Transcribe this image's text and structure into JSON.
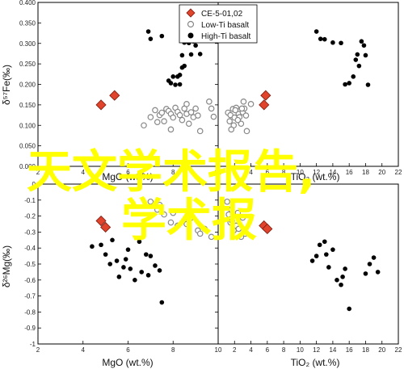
{
  "chart_data": [
    {
      "type": "scatter",
      "xlabel": "MgO (wt.%)",
      "ylabel": "δ57Fe(‰)",
      "xlim": [
        2,
        10
      ],
      "ylim": [
        0.0,
        0.4
      ],
      "xticks": [
        2,
        4,
        6,
        8,
        10
      ],
      "yticks": [
        "0.000",
        "0.050",
        "0.100",
        "0.150",
        "0.200",
        "0.250",
        "0.300",
        "0.350",
        "0.400"
      ],
      "series": [
        {
          "name": "CE-5-01,02",
          "marker": "diamond",
          "color": "#e0442c",
          "x": [
            4.8,
            5.4
          ],
          "y": [
            0.15,
            0.173
          ]
        },
        {
          "name": "Low-Ti basalt",
          "marker": "circle-open",
          "color": "#888888",
          "x": [
            6.7,
            7.0,
            7.2,
            7.4,
            7.5,
            7.6,
            7.7,
            7.8,
            7.9,
            8.0,
            8.1,
            8.2,
            8.3,
            8.4,
            8.5,
            8.6,
            8.7,
            8.8,
            8.9,
            9.0,
            9.1,
            9.2,
            9.6,
            9.7,
            7.3,
            7.9,
            8.6,
            9.8
          ],
          "y": [
            0.1,
            0.12,
            0.137,
            0.125,
            0.131,
            0.11,
            0.14,
            0.135,
            0.128,
            0.119,
            0.143,
            0.133,
            0.125,
            0.113,
            0.141,
            0.128,
            0.104,
            0.132,
            0.12,
            0.141,
            0.124,
            0.086,
            0.158,
            0.141,
            0.108,
            0.09,
            0.152,
            0.121
          ]
        },
        {
          "name": "High-Ti basalt",
          "marker": "circle",
          "color": "#000000",
          "x": [
            6.9,
            7.0,
            7.5,
            7.9,
            8.1,
            8.2,
            8.3,
            8.4,
            8.5,
            8.6,
            8.7,
            7.8,
            8.0,
            8.8,
            8.9,
            9.0,
            9.2,
            8.3,
            8.5,
            8.6,
            8.4
          ],
          "y": [
            0.329,
            0.311,
            0.318,
            0.203,
            0.199,
            0.219,
            0.2,
            0.271,
            0.302,
            0.31,
            0.301,
            0.209,
            0.219,
            0.273,
            0.305,
            0.295,
            0.274,
            0.223,
            0.245,
            0.306,
            0.241
          ]
        }
      ]
    },
    {
      "type": "scatter",
      "xlabel": "TiO2 (wt.%)",
      "ylabel": "",
      "xlim": [
        0,
        22
      ],
      "ylim": [
        0.0,
        0.4
      ],
      "xticks": [
        0,
        2,
        4,
        6,
        8,
        10,
        12,
        14,
        16,
        18,
        20,
        22
      ],
      "series": [
        {
          "name": "CE-5-01,02",
          "marker": "diamond",
          "color": "#e0442c",
          "x": [
            5.6,
            5.8
          ],
          "y": [
            0.15,
            0.173
          ]
        },
        {
          "name": "Low-Ti basalt",
          "marker": "circle-open",
          "color": "#888888",
          "x": [
            1.2,
            1.5,
            1.8,
            2.0,
            2.2,
            2.5,
            2.8,
            3.0,
            3.2,
            3.5,
            1.4,
            2.1,
            2.6,
            3.1,
            1.9,
            2.4,
            2.9,
            3.4,
            4.0,
            1.6
          ],
          "y": [
            0.131,
            0.125,
            0.14,
            0.119,
            0.143,
            0.128,
            0.104,
            0.132,
            0.141,
            0.086,
            0.11,
            0.137,
            0.12,
            0.158,
            0.1,
            0.113,
            0.141,
            0.124,
            0.152,
            0.09
          ]
        },
        {
          "name": "High-Ti basalt",
          "marker": "circle",
          "color": "#000000",
          "x": [
            12.0,
            12.5,
            13.0,
            14.0,
            15.5,
            16.0,
            16.5,
            17.0,
            17.5,
            17.8,
            18.0,
            18.3,
            15.0,
            16.8,
            17.2
          ],
          "y": [
            0.329,
            0.311,
            0.31,
            0.302,
            0.2,
            0.203,
            0.219,
            0.273,
            0.305,
            0.295,
            0.271,
            0.199,
            0.301,
            0.26,
            0.245
          ]
        }
      ]
    },
    {
      "type": "scatter",
      "xlabel": "MgO (wt.%)",
      "ylabel": "δ26Mg(‰)",
      "xlim": [
        2,
        10
      ],
      "ylim": [
        -1.0,
        0.0
      ],
      "xticks": [
        2,
        4,
        6,
        8,
        10
      ],
      "yticks": [
        "0",
        "-0.1",
        "-0.2",
        "-0.3",
        "-0.4",
        "-0.5",
        "-0.6",
        "-0.7",
        "-0.8",
        "-0.9",
        "-1"
      ],
      "series": [
        {
          "name": "CE-5-01,02",
          "marker": "diamond",
          "color": "#e0442c",
          "x": [
            4.8,
            5.0
          ],
          "y": [
            -0.23,
            -0.27
          ]
        },
        {
          "name": "Low-Ti basalt",
          "marker": "circle-open",
          "color": "#888888",
          "x": [
            7.0,
            7.3,
            7.6,
            7.9,
            8.2,
            8.5,
            8.8,
            9.1,
            9.4,
            9.7,
            7.4,
            8.0,
            8.6,
            9.2
          ],
          "y": [
            -0.11,
            -0.16,
            -0.19,
            -0.24,
            -0.26,
            -0.23,
            -0.21,
            -0.29,
            -0.28,
            -0.33,
            -0.13,
            -0.18,
            -0.25,
            -0.31
          ]
        },
        {
          "name": "High-Ti basalt",
          "marker": "circle",
          "color": "#000000",
          "x": [
            4.4,
            4.8,
            5.0,
            5.3,
            5.5,
            5.6,
            5.8,
            6.0,
            6.1,
            6.3,
            6.5,
            6.6,
            6.8,
            7.0,
            7.2,
            7.4,
            7.5,
            5.2,
            5.9,
            6.9
          ],
          "y": [
            -0.39,
            -0.38,
            -0.44,
            -0.35,
            -0.48,
            -0.58,
            -0.52,
            -0.41,
            -0.53,
            -0.6,
            -0.36,
            -0.55,
            -0.44,
            -0.45,
            -0.51,
            -0.54,
            -0.74,
            -0.5,
            -0.47,
            -0.57
          ]
        }
      ]
    },
    {
      "type": "scatter",
      "xlabel": "TiO2 (wt.%)",
      "ylabel": "",
      "xlim": [
        0,
        22
      ],
      "ylim": [
        -1.0,
        0.0
      ],
      "xticks": [
        0,
        2,
        4,
        6,
        8,
        10,
        12,
        14,
        16,
        18,
        20,
        22
      ],
      "series": [
        {
          "name": "CE-5-01,02",
          "marker": "diamond",
          "color": "#e0442c",
          "x": [
            5.6,
            6.0
          ],
          "y": [
            -0.26,
            -0.28
          ]
        },
        {
          "name": "Low-Ti basalt",
          "marker": "circle-open",
          "color": "#888888",
          "x": [
            1.1,
            1.3,
            1.5,
            1.7,
            1.9,
            2.2,
            2.5,
            2.8,
            3.0,
            3.3,
            1.6,
            2.4
          ],
          "y": [
            -0.11,
            -0.19,
            -0.24,
            -0.23,
            -0.29,
            -0.26,
            -0.28,
            -0.33,
            -0.21,
            -0.31,
            -0.16,
            -0.18
          ]
        },
        {
          "name": "High-Ti basalt",
          "marker": "circle",
          "color": "#000000",
          "x": [
            11.5,
            12.0,
            12.4,
            13.0,
            13.5,
            14.0,
            14.5,
            15.0,
            15.5,
            16.0,
            18.0,
            18.5,
            19.0,
            19.5,
            13.2,
            15.2
          ],
          "y": [
            -0.48,
            -0.45,
            -0.38,
            -0.36,
            -0.52,
            -0.41,
            -0.6,
            -0.63,
            -0.53,
            -0.78,
            -0.56,
            -0.5,
            -0.46,
            -0.55,
            -0.44,
            -0.58
          ]
        }
      ]
    }
  ],
  "axis_labels": {
    "top_left_y": "δ⁵⁷Fe(‰)",
    "bottom_left_y": "δ²⁶Mg(‰)",
    "top_left_x": "MgO (wt.%)",
    "top_right_x": "TiO₂ (wt.%)",
    "bottom_left_x": "MgO (wt.%)",
    "bottom_right_x": "TiO₂ (wt.%)"
  },
  "legend": {
    "placement": "top-left-panel top-right",
    "items": [
      {
        "label": "CE-5-01,02",
        "marker": "diamond",
        "color": "#e0442c"
      },
      {
        "label": "Low-Ti basalt",
        "marker": "circle-open",
        "color": "#888888"
      },
      {
        "label": "High-Ti basalt",
        "marker": "circle",
        "color": "#000000"
      }
    ]
  },
  "watermark": {
    "line1": "天文学术报告,",
    "line2": "学术报",
    "color": "#ffff00"
  }
}
